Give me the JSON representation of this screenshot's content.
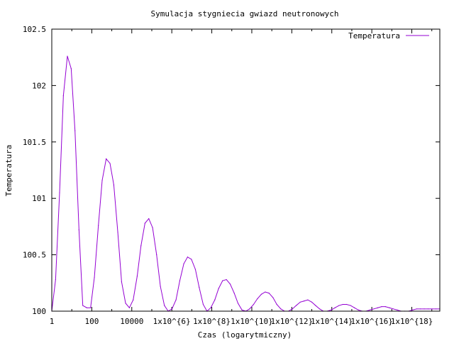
{
  "chart_data": {
    "type": "line",
    "title": "Symulacja stygniecia gwiazd neutronowych",
    "xlabel": "Czas (logarytmiczny)",
    "ylabel": "Temperatura",
    "x_scale": "log10",
    "xlim_log10": [
      0,
      19.4
    ],
    "ylim": [
      100,
      102.5
    ],
    "grid": false,
    "legend_position": "top-right",
    "x_ticks": [
      {
        "log10": 0,
        "label": "1"
      },
      {
        "log10": 2,
        "label": "100"
      },
      {
        "log10": 4,
        "label": "10000"
      },
      {
        "log10": 6,
        "label": "1x10^{6}"
      },
      {
        "log10": 8,
        "label": "1x10^{8}"
      },
      {
        "log10": 10,
        "label": "1x10^{10}"
      },
      {
        "log10": 12,
        "label": "1x10^{12}"
      },
      {
        "log10": 14,
        "label": "1x10^{14}"
      },
      {
        "log10": 16,
        "label": "1x10^{16}"
      },
      {
        "log10": 18,
        "label": "1x10^{18}"
      }
    ],
    "y_ticks": [
      {
        "value": 100,
        "label": "100"
      },
      {
        "value": 100.5,
        "label": "100.5"
      },
      {
        "value": 101,
        "label": "101"
      },
      {
        "value": 101.5,
        "label": "101.5"
      },
      {
        "value": 102,
        "label": "102"
      },
      {
        "value": 102.5,
        "label": "102.5"
      }
    ],
    "series": [
      {
        "name": "Temperatura",
        "color": "#9400d3",
        "x_log10": [
          0.0,
          0.19,
          0.39,
          0.58,
          0.78,
          0.97,
          1.16,
          1.36,
          1.55,
          1.75,
          1.94,
          2.13,
          2.33,
          2.52,
          2.72,
          2.91,
          3.1,
          3.3,
          3.49,
          3.69,
          3.88,
          4.07,
          4.27,
          4.46,
          4.66,
          4.85,
          5.04,
          5.24,
          5.43,
          5.63,
          5.82,
          6.01,
          6.21,
          6.4,
          6.6,
          6.79,
          6.98,
          7.18,
          7.37,
          7.57,
          7.76,
          7.95,
          8.15,
          8.34,
          8.54,
          8.73,
          8.92,
          9.12,
          9.31,
          9.51,
          9.7,
          9.89,
          10.09,
          10.28,
          10.48,
          10.67,
          10.86,
          11.06,
          11.25,
          11.45,
          11.64,
          11.83,
          12.03,
          12.22,
          12.42,
          12.61,
          12.8,
          13.0,
          13.19,
          13.39,
          13.58,
          13.77,
          13.97,
          14.16,
          14.36,
          14.55,
          14.74,
          14.94,
          15.13,
          15.33,
          15.52,
          15.71,
          15.91,
          16.1,
          16.3,
          16.49,
          16.68,
          16.88,
          17.07,
          17.27,
          17.46,
          17.65,
          17.85,
          18.04,
          18.24,
          18.43,
          18.62,
          18.82,
          19.01,
          19.21,
          19.4
        ],
        "y": [
          100.0,
          100.28,
          101.05,
          101.91,
          102.26,
          102.15,
          101.6,
          100.72,
          100.05,
          100.03,
          100.03,
          100.3,
          100.76,
          101.16,
          101.35,
          101.31,
          101.12,
          100.7,
          100.26,
          100.07,
          100.03,
          100.1,
          100.31,
          100.58,
          100.78,
          100.82,
          100.74,
          100.5,
          100.22,
          100.05,
          100.0,
          100.02,
          100.1,
          100.27,
          100.42,
          100.48,
          100.46,
          100.37,
          100.21,
          100.06,
          100.0,
          100.03,
          100.1,
          100.2,
          100.27,
          100.28,
          100.24,
          100.16,
          100.07,
          100.01,
          100.0,
          100.02,
          100.06,
          100.11,
          100.15,
          100.17,
          100.16,
          100.12,
          100.06,
          100.02,
          100.0,
          100.0,
          100.02,
          100.05,
          100.08,
          100.09,
          100.1,
          100.08,
          100.05,
          100.02,
          100.0,
          100.0,
          100.01,
          100.03,
          100.05,
          100.06,
          100.06,
          100.05,
          100.03,
          100.01,
          100.0,
          100.0,
          100.01,
          100.02,
          100.03,
          100.04,
          100.04,
          100.03,
          100.02,
          100.01,
          100.0,
          100.0,
          100.0,
          100.01,
          100.02,
          100.02,
          100.02,
          100.02,
          100.02,
          100.02,
          100.02
        ]
      }
    ]
  }
}
